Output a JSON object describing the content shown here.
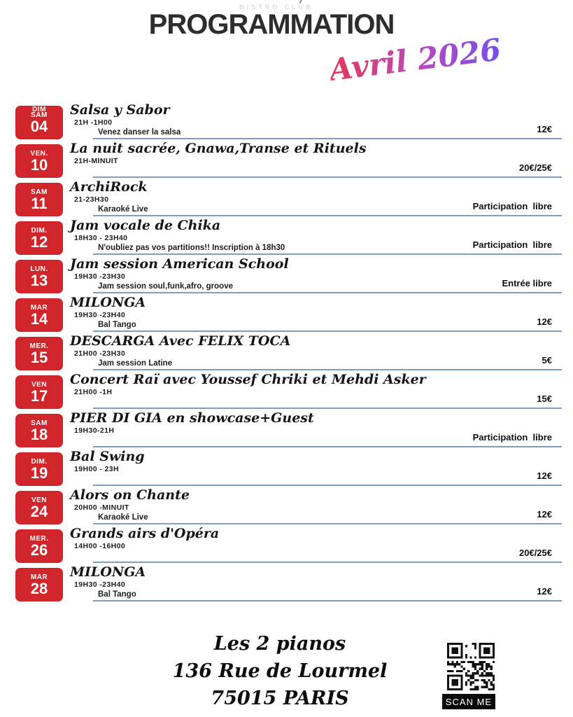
{
  "header": {
    "logo_text": "BISTRO  CLUB",
    "title": "PROGRAMMATION",
    "month": "Avril 2026"
  },
  "colors": {
    "badge_red": "#d0262b",
    "rule_blue": "#7e9dc0",
    "month_gradient_start": "#e23a60",
    "month_gradient_mid": "#b44ac0",
    "month_gradient_end": "#7a4fe8"
  },
  "events": [
    {
      "day": "SAM",
      "day_overlay": "DIM",
      "date": "04",
      "title": "Salsa y Sabor",
      "time": "21H -1H00",
      "desc": "Venez danser la salsa",
      "price": "12€"
    },
    {
      "day": "VEN.",
      "date": "10",
      "title": "La nuit sacrée, Gnawa,Transe et Rituels",
      "time": "21H-MINUIT",
      "desc": "",
      "price": "20€/25€"
    },
    {
      "day": "SAM",
      "date": "11",
      "title": "ArchiRock",
      "time": "21-23H30",
      "desc": "Karaoké Live",
      "price": "Participation  libre"
    },
    {
      "day": "DIM.",
      "date": "12",
      "title": "Jam vocale de Chika",
      "time": "18H30 - 23H40",
      "desc": "N'oubliez pas vos partitions!! Inscription à 18h30",
      "price": "Participation  libre"
    },
    {
      "day": "LUN.",
      "date": "13",
      "title": "Jam session American School",
      "time": "19H30 -23H30",
      "desc": "Jam session soul,funk,afro, groove",
      "price": "Entrée libre"
    },
    {
      "day": "MAR",
      "date": "14",
      "title": "MILONGA",
      "time": "19H30 -23H40",
      "desc": "Bal Tango",
      "price": "12€"
    },
    {
      "day": "MER.",
      "date": "15",
      "title": "DESCARGA Avec FELIX TOCA",
      "time": "21H00 -23H30",
      "desc": "Jam session Latine",
      "price": "5€"
    },
    {
      "day": "VEN",
      "date": "17",
      "title": "Concert Raï avec Youssef Chriki et Mehdi Asker",
      "time": "21H00 -1H",
      "desc": "",
      "price": "15€"
    },
    {
      "day": "SAM",
      "date": "18",
      "title": "PIER DI GIA en showcase+Guest",
      "time": "19H30-21H",
      "desc": "",
      "price": "Participation  libre"
    },
    {
      "day": "DIM.",
      "date": "19",
      "title": "Bal Swing",
      "time": "19H00 - 23H",
      "desc": "",
      "price": "12€"
    },
    {
      "day": "VEN",
      "date": "24",
      "title": "Alors on Chante",
      "time": "20H00 -MINUIT",
      "desc": "Karaoké Live",
      "price": "12€"
    },
    {
      "day": "MER.",
      "date": "26",
      "title": "Grands airs d'Opéra",
      "time": "14H00 -16H00",
      "desc": "",
      "price": "20€/25€"
    },
    {
      "day": "MAR",
      "date": "28",
      "title": "MILONGA",
      "time": "19H30 -23H40",
      "desc": "Bal Tango",
      "price": "12€"
    }
  ],
  "footer": {
    "venue": "Les 2 pianos",
    "address": "136 Rue de Lourmel",
    "city": "75015 PARIS",
    "qr_label": "SCAN ME"
  }
}
